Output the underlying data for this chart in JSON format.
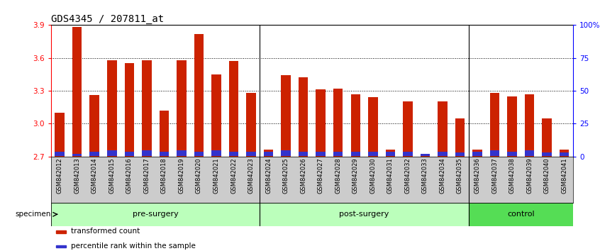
{
  "title": "GDS4345 / 207811_at",
  "categories": [
    "GSM842012",
    "GSM842013",
    "GSM842014",
    "GSM842015",
    "GSM842016",
    "GSM842017",
    "GSM842018",
    "GSM842019",
    "GSM842020",
    "GSM842021",
    "GSM842022",
    "GSM842023",
    "GSM842024",
    "GSM842025",
    "GSM842026",
    "GSM842027",
    "GSM842028",
    "GSM842029",
    "GSM842030",
    "GSM842031",
    "GSM842032",
    "GSM842033",
    "GSM842034",
    "GSM842035",
    "GSM842036",
    "GSM842037",
    "GSM842038",
    "GSM842039",
    "GSM842040",
    "GSM842041"
  ],
  "red_values": [
    3.1,
    3.88,
    3.26,
    3.58,
    3.55,
    3.58,
    3.12,
    3.58,
    3.82,
    3.45,
    3.57,
    3.28,
    2.76,
    3.44,
    3.42,
    3.31,
    3.32,
    3.27,
    3.24,
    2.76,
    3.2,
    2.72,
    3.2,
    3.05,
    2.76,
    3.28,
    3.25,
    3.27,
    3.05,
    2.76
  ],
  "blue_values": [
    0.04,
    0.02,
    0.04,
    0.05,
    0.04,
    0.05,
    0.04,
    0.05,
    0.04,
    0.05,
    0.04,
    0.04,
    0.04,
    0.05,
    0.04,
    0.04,
    0.04,
    0.04,
    0.04,
    0.04,
    0.04,
    0.02,
    0.04,
    0.03,
    0.04,
    0.05,
    0.04,
    0.05,
    0.03,
    0.03
  ],
  "ymin": 2.7,
  "ymax": 3.9,
  "yticks_left": [
    2.7,
    3.0,
    3.3,
    3.6,
    3.9
  ],
  "yticks_right": [
    0,
    25,
    50,
    75,
    100
  ],
  "ytick_labels_right": [
    "0",
    "25",
    "50",
    "75",
    "100%"
  ],
  "bar_color_red": "#cc2200",
  "bar_color_blue": "#3333cc",
  "groups": [
    {
      "label": "pre-surgery",
      "start": 0,
      "end": 12,
      "color": "#bbffbb"
    },
    {
      "label": "post-surgery",
      "start": 12,
      "end": 24,
      "color": "#bbffbb"
    },
    {
      "label": "control",
      "start": 24,
      "end": 30,
      "color": "#55dd55"
    }
  ],
  "group_separator_indices": [
    12,
    24
  ],
  "legend_items": [
    {
      "label": "transformed count",
      "color": "#cc2200"
    },
    {
      "label": "percentile rank within the sample",
      "color": "#3333cc"
    }
  ],
  "title_fontsize": 10,
  "axis_fontsize": 7.5,
  "bar_width": 0.55,
  "tick_area_bg": "#cccccc",
  "dotted_yticks": [
    3.0,
    3.3,
    3.6
  ]
}
